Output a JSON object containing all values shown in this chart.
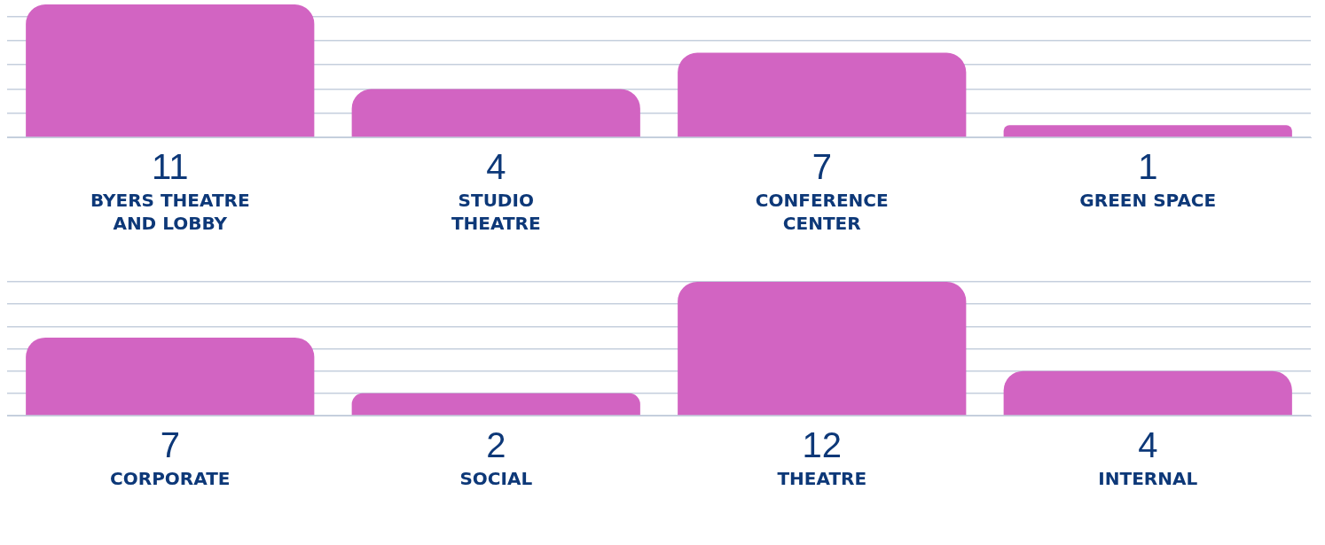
{
  "chart_data": [
    {
      "type": "bar",
      "categories": [
        "BYERS THEATRE AND LOBBY",
        "STUDIO THEATRE",
        "CONFERENCE CENTER",
        "GREEN SPACE"
      ],
      "values": [
        11,
        4,
        7,
        1
      ],
      "color": "#d264c2",
      "ylim": [
        0,
        11
      ],
      "yticks": [
        {
          "value": 0,
          "label": null
        },
        {
          "value": 2,
          "label": null
        },
        {
          "value": 4,
          "label": null
        },
        {
          "value": 6,
          "label": null
        },
        {
          "value": 8,
          "label": null
        },
        {
          "value": 10,
          "label": null
        }
      ],
      "grid": "y",
      "tick_labels": "x",
      "data_labels": true,
      "legend": false
    },
    {
      "type": "bar",
      "categories": [
        "CORPORATE",
        "SOCIAL",
        "THEATRE",
        "INTERNAL"
      ],
      "values": [
        7,
        2,
        12,
        4
      ],
      "color": "#d264c2",
      "ylim": [
        0,
        12
      ],
      "yticks": [
        {
          "value": 0,
          "label": null
        },
        {
          "value": 2,
          "label": null
        },
        {
          "value": 4,
          "label": null
        },
        {
          "value": 6,
          "label": null
        },
        {
          "value": 8,
          "label": null
        },
        {
          "value": 10,
          "label": null
        },
        {
          "value": 12,
          "label": null
        }
      ],
      "grid": "y",
      "tick_labels": "x",
      "data_labels": true,
      "legend": false
    }
  ]
}
